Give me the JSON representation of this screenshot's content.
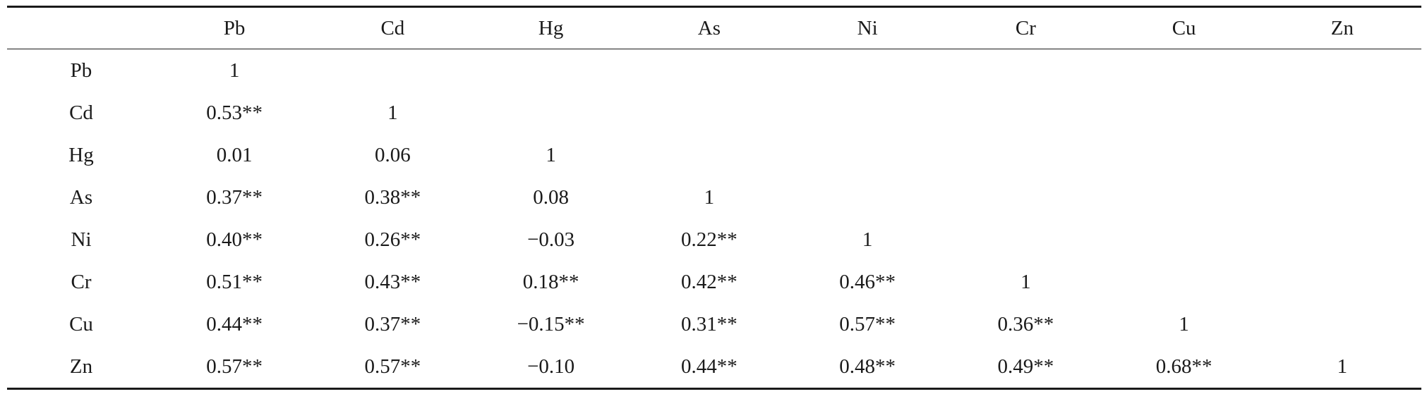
{
  "table": {
    "corner": "",
    "headers": [
      "Pb",
      "Cd",
      "Hg",
      "As",
      "Ni",
      "Cr",
      "Cu",
      "Zn"
    ],
    "rows": [
      {
        "label": "Pb",
        "cells": [
          "1",
          "",
          "",
          "",
          "",
          "",
          "",
          ""
        ]
      },
      {
        "label": "Cd",
        "cells": [
          "0.53**",
          "1",
          "",
          "",
          "",
          "",
          "",
          ""
        ]
      },
      {
        "label": "Hg",
        "cells": [
          "0.01",
          "0.06",
          "1",
          "",
          "",
          "",
          "",
          ""
        ]
      },
      {
        "label": "As",
        "cells": [
          "0.37**",
          "0.38**",
          "0.08",
          "1",
          "",
          "",
          "",
          ""
        ]
      },
      {
        "label": "Ni",
        "cells": [
          "0.40**",
          "0.26**",
          "−0.03",
          "0.22**",
          "1",
          "",
          "",
          ""
        ]
      },
      {
        "label": "Cr",
        "cells": [
          "0.51**",
          "0.43**",
          "0.18**",
          "0.42**",
          "0.46**",
          "1",
          "",
          ""
        ]
      },
      {
        "label": "Cu",
        "cells": [
          "0.44**",
          "0.37**",
          "−0.15**",
          "0.31**",
          "0.57**",
          "0.36**",
          "1",
          ""
        ]
      },
      {
        "label": "Zn",
        "cells": [
          "0.57**",
          "0.57**",
          "−0.10",
          "0.44**",
          "0.48**",
          "0.49**",
          "0.68**",
          "1"
        ]
      }
    ]
  }
}
